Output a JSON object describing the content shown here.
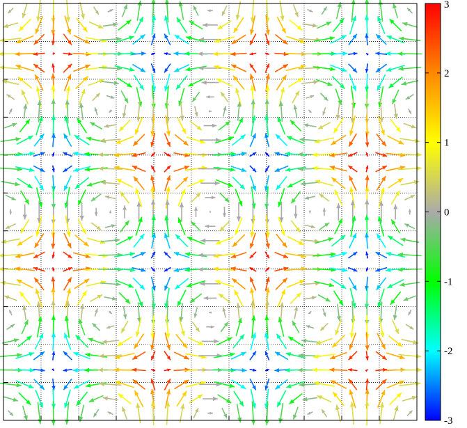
{
  "chart_data": {
    "type": "quiver",
    "field": "cellular vortex array: u = cos(x)·sin(y), v = -sin(x)·cos(y); arrow color = signed value",
    "grid": {
      "nx": 29,
      "ny": 29
    },
    "x_range": [
      0,
      1
    ],
    "y_range": [
      0,
      1
    ],
    "cells": {
      "x": 11,
      "y": 11
    },
    "grid_lines": "dotted",
    "colorbar": {
      "range": [
        -3,
        3
      ],
      "ticks": [
        "3",
        "2",
        "1",
        "0",
        "-1",
        "-2",
        "-3"
      ],
      "colormap": "rainbow",
      "colors": [
        "#0000ff",
        "#00ffff",
        "#00ff00",
        "#aaaaaa",
        "#ffff00",
        "#ff8800",
        "#ff0000"
      ]
    },
    "tick_labels_x": [],
    "tick_labels_y": []
  }
}
